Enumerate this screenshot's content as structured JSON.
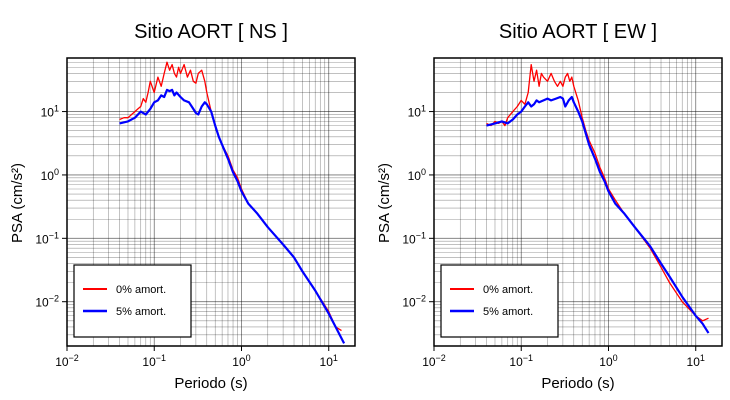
{
  "chart_data": [
    {
      "type": "line",
      "title": "Sitio AORT [ NS ]",
      "xlabel": "Periodo (s)",
      "ylabel": "PSA (cm/s²)",
      "xscale": "log",
      "yscale": "log",
      "xlim": [
        0.01,
        20
      ],
      "ylim": [
        0.002,
        70
      ],
      "xticks": [
        {
          "v": 0.01,
          "base": "10",
          "exp": "−2"
        },
        {
          "v": 0.1,
          "base": "10",
          "exp": "−1"
        },
        {
          "v": 1,
          "base": "10",
          "exp": "0"
        },
        {
          "v": 10,
          "base": "10",
          "exp": "1"
        }
      ],
      "yticks": [
        {
          "v": 0.01,
          "base": "10",
          "exp": "−2"
        },
        {
          "v": 0.1,
          "base": "10",
          "exp": "−1"
        },
        {
          "v": 1,
          "base": "10",
          "exp": "0"
        },
        {
          "v": 10,
          "base": "10",
          "exp": "1"
        }
      ],
      "grid": true,
      "legend_position": "bottom-left",
      "series": [
        {
          "name": "0% amort.",
          "color": "#ff0000",
          "x": [
            0.04,
            0.045,
            0.05,
            0.055,
            0.06,
            0.065,
            0.07,
            0.075,
            0.08,
            0.085,
            0.09,
            0.1,
            0.11,
            0.12,
            0.13,
            0.14,
            0.15,
            0.16,
            0.17,
            0.18,
            0.19,
            0.2,
            0.22,
            0.24,
            0.26,
            0.28,
            0.3,
            0.32,
            0.35,
            0.38,
            0.4,
            0.45,
            0.5,
            0.55,
            0.6,
            0.7,
            0.8,
            0.9,
            1.0,
            1.2,
            1.5,
            2,
            3,
            4,
            5,
            7,
            10,
            12,
            14
          ],
          "y": [
            7.5,
            8,
            8,
            9,
            10,
            11,
            12,
            16,
            14,
            20,
            30,
            20,
            35,
            25,
            40,
            60,
            45,
            55,
            40,
            35,
            50,
            40,
            55,
            35,
            45,
            30,
            28,
            40,
            45,
            30,
            20,
            10,
            6,
            4,
            3,
            2,
            1.2,
            0.9,
            0.6,
            0.35,
            0.25,
            0.15,
            0.08,
            0.05,
            0.03,
            0.015,
            0.007,
            0.004,
            0.0035
          ]
        },
        {
          "name": "5% amort.",
          "color": "#0000ff",
          "x": [
            0.04,
            0.05,
            0.06,
            0.07,
            0.08,
            0.09,
            0.1,
            0.11,
            0.12,
            0.13,
            0.14,
            0.15,
            0.16,
            0.17,
            0.18,
            0.2,
            0.22,
            0.25,
            0.28,
            0.3,
            0.32,
            0.35,
            0.38,
            0.4,
            0.45,
            0.5,
            0.55,
            0.6,
            0.7,
            0.8,
            0.9,
            1.0,
            1.2,
            1.5,
            2,
            3,
            4,
            5,
            7,
            10,
            12,
            15
          ],
          "y": [
            6.5,
            7,
            8,
            10,
            9,
            11,
            14,
            15,
            18,
            17,
            22,
            21,
            22,
            18,
            20,
            17,
            15,
            14,
            11,
            9.5,
            9,
            12,
            14,
            13,
            10,
            6,
            4,
            3,
            1.8,
            1.1,
            0.8,
            0.55,
            0.35,
            0.25,
            0.15,
            0.08,
            0.05,
            0.03,
            0.015,
            0.0065,
            0.004,
            0.0022
          ]
        }
      ]
    },
    {
      "type": "line",
      "title": "Sitio AORT [ EW ]",
      "xlabel": "Periodo (s)",
      "ylabel": "PSA (cm/s²)",
      "xscale": "log",
      "yscale": "log",
      "xlim": [
        0.01,
        20
      ],
      "ylim": [
        0.002,
        70
      ],
      "xticks": [
        {
          "v": 0.01,
          "base": "10",
          "exp": "−2"
        },
        {
          "v": 0.1,
          "base": "10",
          "exp": "−1"
        },
        {
          "v": 1,
          "base": "10",
          "exp": "0"
        },
        {
          "v": 10,
          "base": "10",
          "exp": "1"
        }
      ],
      "yticks": [
        {
          "v": 0.01,
          "base": "10",
          "exp": "−2"
        },
        {
          "v": 0.1,
          "base": "10",
          "exp": "−1"
        },
        {
          "v": 1,
          "base": "10",
          "exp": "0"
        },
        {
          "v": 10,
          "base": "10",
          "exp": "1"
        }
      ],
      "grid": true,
      "legend_position": "bottom-left",
      "series": [
        {
          "name": "0% amort.",
          "color": "#ff0000",
          "x": [
            0.04,
            0.045,
            0.05,
            0.055,
            0.06,
            0.065,
            0.07,
            0.08,
            0.09,
            0.1,
            0.11,
            0.12,
            0.13,
            0.14,
            0.15,
            0.16,
            0.17,
            0.18,
            0.2,
            0.22,
            0.24,
            0.26,
            0.28,
            0.3,
            0.32,
            0.34,
            0.36,
            0.38,
            0.4,
            0.45,
            0.5,
            0.55,
            0.6,
            0.7,
            0.8,
            0.9,
            1.0,
            1.2,
            1.5,
            2,
            3,
            4,
            5,
            7,
            10,
            12,
            14
          ],
          "y": [
            6.5,
            6,
            7,
            6.5,
            7,
            6,
            8,
            10,
            12,
            15,
            13,
            20,
            55,
            30,
            45,
            25,
            40,
            35,
            30,
            40,
            30,
            25,
            30,
            25,
            35,
            40,
            30,
            35,
            25,
            15,
            8,
            5,
            3.5,
            2.2,
            1.3,
            0.9,
            0.6,
            0.4,
            0.25,
            0.15,
            0.07,
            0.035,
            0.02,
            0.01,
            0.006,
            0.005,
            0.0055
          ]
        },
        {
          "name": "5% amort.",
          "color": "#0000ff",
          "x": [
            0.04,
            0.05,
            0.06,
            0.07,
            0.08,
            0.09,
            0.1,
            0.11,
            0.12,
            0.13,
            0.14,
            0.15,
            0.16,
            0.18,
            0.2,
            0.22,
            0.25,
            0.28,
            0.3,
            0.32,
            0.35,
            0.38,
            0.4,
            0.45,
            0.5,
            0.55,
            0.6,
            0.7,
            0.8,
            0.9,
            1.0,
            1.2,
            1.5,
            2,
            3,
            4,
            5,
            7,
            10,
            12,
            14
          ],
          "y": [
            6,
            6.5,
            7,
            6.5,
            7.5,
            9,
            10,
            12,
            14,
            12,
            13,
            15,
            14,
            15,
            16,
            15,
            16,
            17,
            16,
            12,
            15,
            17,
            14,
            10,
            7,
            4.5,
            3,
            1.8,
            1.1,
            0.8,
            0.55,
            0.35,
            0.25,
            0.15,
            0.075,
            0.04,
            0.025,
            0.012,
            0.006,
            0.0045,
            0.0032
          ]
        }
      ]
    }
  ]
}
